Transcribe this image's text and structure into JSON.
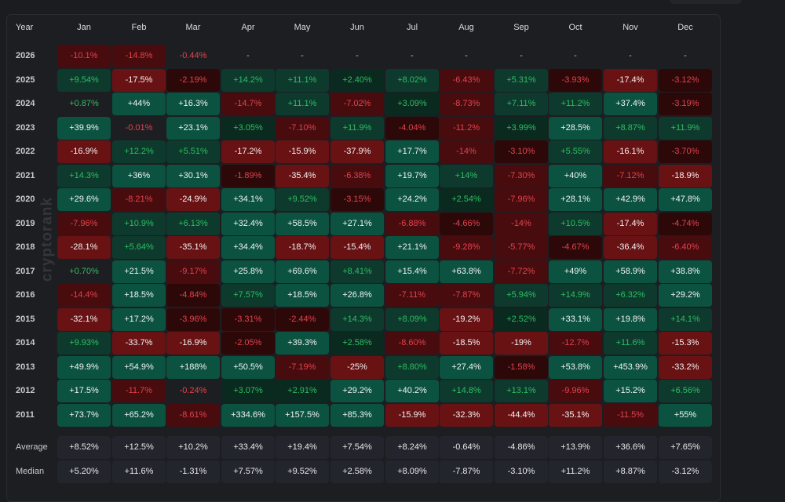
{
  "colors": {
    "strong_green": "#0b5240",
    "strong_red": "#691214",
    "positive_text": "#2ebd62",
    "negative_text": "#e0434b"
  },
  "watermark": "cryptorank",
  "table": {
    "year_header": "Year",
    "months": [
      "Jan",
      "Feb",
      "Mar",
      "Apr",
      "May",
      "Jun",
      "Jul",
      "Aug",
      "Sep",
      "Oct",
      "Nov",
      "Dec"
    ],
    "rows": [
      {
        "year": "2026",
        "values": [
          "-10.1%",
          "-14.8%",
          "-0.44%",
          "-",
          "-",
          "-",
          "-",
          "-",
          "-",
          "-",
          "-",
          "-"
        ]
      },
      {
        "year": "2025",
        "values": [
          "+9.54%",
          "-17.5%",
          "-2.19%",
          "+14.2%",
          "+11.1%",
          "+2.40%",
          "+8.02%",
          "-6.43%",
          "+5.31%",
          "-3.93%",
          "-17.4%",
          "-3.12%"
        ]
      },
      {
        "year": "2024",
        "values": [
          "+0.87%",
          "+44%",
          "+16.3%",
          "-14.7%",
          "+11.1%",
          "-7.02%",
          "+3.09%",
          "-8.73%",
          "+7.11%",
          "+11.2%",
          "+37.4%",
          "-3.19%"
        ]
      },
      {
        "year": "2023",
        "values": [
          "+39.9%",
          "-0.01%",
          "+23.1%",
          "+3.05%",
          "-7.10%",
          "+11.9%",
          "-4.04%",
          "-11.2%",
          "+3.99%",
          "+28.5%",
          "+8.87%",
          "+11.9%"
        ]
      },
      {
        "year": "2022",
        "values": [
          "-16.9%",
          "+12.2%",
          "+5.51%",
          "-17.2%",
          "-15.9%",
          "-37.9%",
          "+17.7%",
          "-14%",
          "-3.10%",
          "+5.55%",
          "-16.1%",
          "-3.70%"
        ]
      },
      {
        "year": "2021",
        "values": [
          "+14.3%",
          "+36%",
          "+30.1%",
          "-1.89%",
          "-35.4%",
          "-6.38%",
          "+19.7%",
          "+14%",
          "-7.30%",
          "+40%",
          "-7.12%",
          "-18.9%"
        ]
      },
      {
        "year": "2020",
        "values": [
          "+29.6%",
          "-8.21%",
          "-24.9%",
          "+34.1%",
          "+9.52%",
          "-3.15%",
          "+24.2%",
          "+2.54%",
          "-7.96%",
          "+28.1%",
          "+42.9%",
          "+47.8%"
        ]
      },
      {
        "year": "2019",
        "values": [
          "-7.96%",
          "+10.9%",
          "+6.13%",
          "+32.4%",
          "+58.5%",
          "+27.1%",
          "-6.88%",
          "-4.66%",
          "-14%",
          "+10.5%",
          "-17.4%",
          "-4.74%"
        ]
      },
      {
        "year": "2018",
        "values": [
          "-28.1%",
          "+5.64%",
          "-35.1%",
          "+34.4%",
          "-18.7%",
          "-15.4%",
          "+21.1%",
          "-9.28%",
          "-5.77%",
          "-4.67%",
          "-36.4%",
          "-6.40%"
        ]
      },
      {
        "year": "2017",
        "values": [
          "+0.70%",
          "+21.5%",
          "-9.17%",
          "+25.8%",
          "+69.6%",
          "+8.41%",
          "+15.4%",
          "+63.8%",
          "-7.72%",
          "+49%",
          "+58.9%",
          "+38.8%"
        ]
      },
      {
        "year": "2016",
        "values": [
          "-14.4%",
          "+18.5%",
          "-4.84%",
          "+7.57%",
          "+18.5%",
          "+26.8%",
          "-7.11%",
          "-7.87%",
          "+5.94%",
          "+14.9%",
          "+6.32%",
          "+29.2%"
        ]
      },
      {
        "year": "2015",
        "values": [
          "-32.1%",
          "+17.2%",
          "-3.96%",
          "-3.31%",
          "-2.44%",
          "+14.3%",
          "+8.09%",
          "-19.2%",
          "+2.52%",
          "+33.1%",
          "+19.8%",
          "+14.1%"
        ]
      },
      {
        "year": "2014",
        "values": [
          "+9.93%",
          "-33.7%",
          "-16.9%",
          "-2.05%",
          "+39.3%",
          "+2.58%",
          "-8.60%",
          "-18.5%",
          "-19%",
          "-12.7%",
          "+11.6%",
          "-15.3%"
        ]
      },
      {
        "year": "2013",
        "values": [
          "+49.9%",
          "+54.9%",
          "+188%",
          "+50.5%",
          "-7.19%",
          "-25%",
          "+8.80%",
          "+27.4%",
          "-1.58%",
          "+53.8%",
          "+453.9%",
          "-33.2%"
        ]
      },
      {
        "year": "2012",
        "values": [
          "+17.5%",
          "-11.7%",
          "-0.24%",
          "+3.07%",
          "+2.91%",
          "+29.2%",
          "+40.2%",
          "+14.8%",
          "+13.1%",
          "-9.96%",
          "+15.2%",
          "+6.56%"
        ]
      },
      {
        "year": "2011",
        "values": [
          "+73.7%",
          "+65.2%",
          "-8.61%",
          "+334.6%",
          "+157.5%",
          "+85.3%",
          "-15.9%",
          "-32.3%",
          "-44.4%",
          "-35.1%",
          "-11.5%",
          "+55%"
        ]
      }
    ],
    "stats": [
      {
        "label": "Average",
        "values": [
          "+8.52%",
          "+12.5%",
          "+10.2%",
          "+33.4%",
          "+19.4%",
          "+7.54%",
          "+8.24%",
          "-0.64%",
          "-4.86%",
          "+13.9%",
          "+36.6%",
          "+7.65%"
        ]
      },
      {
        "label": "Median",
        "values": [
          "+5.20%",
          "+11.6%",
          "-1.31%",
          "+7.57%",
          "+9.52%",
          "+2.58%",
          "+8.09%",
          "-7.87%",
          "-3.10%",
          "+11.2%",
          "+8.87%",
          "-3.12%"
        ]
      }
    ]
  }
}
